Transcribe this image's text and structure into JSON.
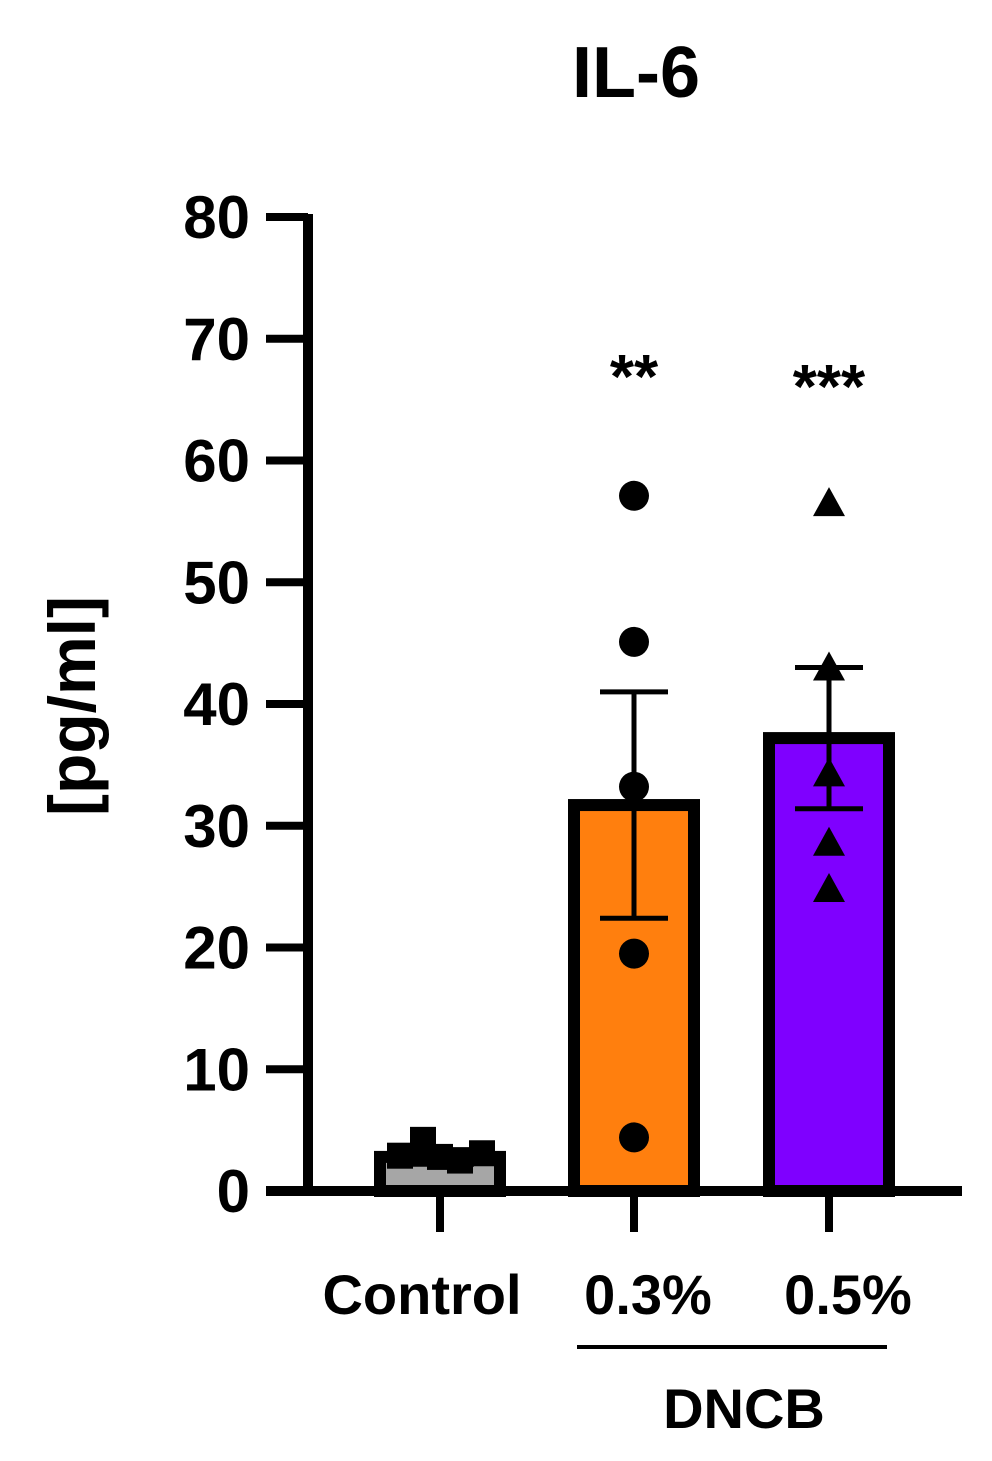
{
  "chart_data": {
    "type": "bar",
    "title": "IL-6",
    "ylabel": "[pg/ml]",
    "xlabel": "",
    "ylim": [
      0,
      80
    ],
    "yticks": [
      "0",
      "10",
      "20",
      "30",
      "40",
      "50",
      "60",
      "70",
      "80"
    ],
    "categories": [
      "Control",
      "0.3%",
      "0.5%"
    ],
    "group_label": "DNCB",
    "bars": [
      {
        "category": "Control",
        "mean": 2.8,
        "sem": 0.6,
        "color": "#a6a6a6",
        "marker": "square",
        "points": [
          2.9,
          4.2,
          2.8,
          2.5,
          3.1
        ],
        "significance": ""
      },
      {
        "category": "0.3%",
        "mean": 31.7,
        "sem": 9.3,
        "color": "#ff7f0e",
        "marker": "circle",
        "points": [
          57.1,
          45.1,
          33.2,
          19.5,
          4.4
        ],
        "significance": "**"
      },
      {
        "category": "0.5%",
        "mean": 37.2,
        "sem": 5.8,
        "color": "#7f00ff",
        "marker": "triangle",
        "points": [
          56.5,
          43.0,
          34.3,
          28.6,
          24.8
        ],
        "significance": "***"
      }
    ],
    "grid": false,
    "legend": "none"
  }
}
